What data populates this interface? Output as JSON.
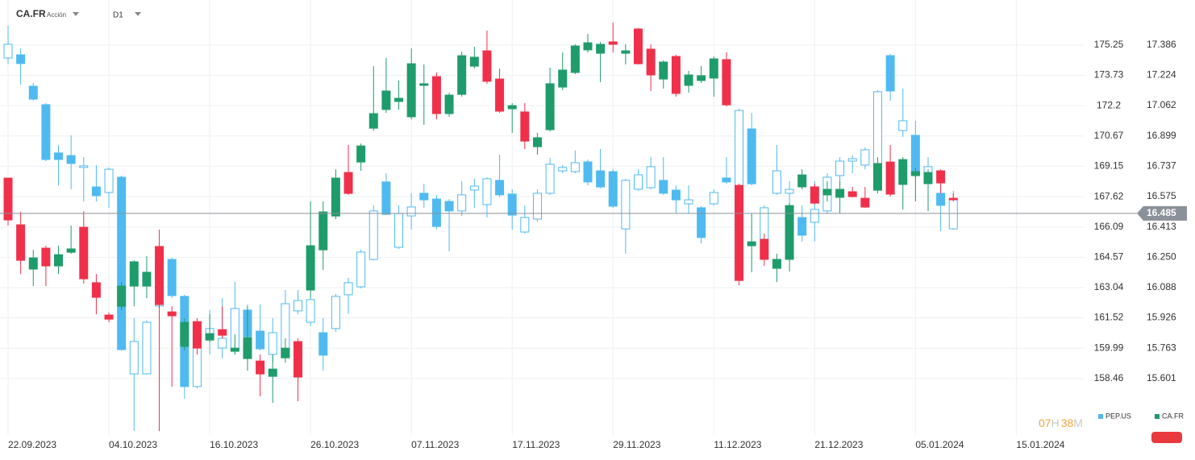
{
  "header": {
    "symbol": "CA.FR",
    "asset_type": "Acción",
    "timeframe": "D1"
  },
  "countdown": {
    "hours": "07",
    "hours_unit": "H",
    "minutes": "38",
    "minutes_unit": "M"
  },
  "chart_data": {
    "type": "candlestick",
    "categories": [
      "22.09.2023",
      null,
      null,
      null,
      null,
      null,
      null,
      null,
      "04.10.2023",
      null,
      null,
      null,
      null,
      null,
      null,
      null,
      "16.10.2023",
      null,
      null,
      null,
      null,
      null,
      null,
      null,
      "26.10.2023",
      null,
      null,
      null,
      null,
      null,
      null,
      null,
      "07.11.2023",
      null,
      null,
      null,
      null,
      null,
      null,
      null,
      "17.11.2023",
      null,
      null,
      null,
      null,
      null,
      null,
      null,
      "29.11.2023",
      null,
      null,
      null,
      null,
      null,
      null,
      null,
      "11.12.2023",
      null,
      null,
      null,
      null,
      null,
      null,
      null,
      "21.12.2023",
      null,
      null,
      null,
      null,
      null,
      null,
      null,
      "05.01.2024",
      null,
      null,
      null,
      null,
      null,
      null,
      null,
      "15.01.2024"
    ],
    "series": [
      {
        "name": "PEP.US",
        "axis": "y",
        "color": "#4fbaf0",
        "hollow_up": true,
        "open": [
          174.6,
          174.76,
          173.18,
          172.25,
          169.82,
          169.69,
          169.09,
          168.11,
          167.83,
          168.6,
          158.7,
          158.7,
          162.11,
          164.46,
          162.6,
          158.06,
          160.49,
          160.0,
          159.88,
          161.91,
          160.85,
          159.68,
          159.52,
          161.87,
          161.3,
          160.77,
          160.98,
          162.68,
          163.08,
          164.46,
          168.36,
          165.07,
          166.65,
          167.79,
          167.5,
          167.38,
          166.9,
          167.95,
          167.22,
          168.44,
          167.75,
          165.84,
          166.49,
          167.79,
          168.92,
          168.88,
          169.37,
          168.92,
          168.88,
          166.0,
          167.99,
          168.07,
          168.44,
          167.95,
          167.26,
          167.06,
          167.26,
          168.56,
          166.77,
          171.03,
          165.48,
          167.79,
          167.79,
          166.57,
          166.33,
          166.9,
          168.68,
          169.41,
          169.21,
          169.25,
          174.72,
          170.95,
          170.71,
          168.64,
          167.79,
          166.0,
          null,
          null,
          null,
          null,
          null
        ],
        "high": [
          176.22,
          175.09,
          173.34,
          172.33,
          170.22,
          170.71,
          169.61,
          169.21,
          169.09,
          168.68,
          161.5,
          161.38,
          164.54,
          164.54,
          162.68,
          161.3,
          161.91,
          162.52,
          163.33,
          162.19,
          162.19,
          161.5,
          162.92,
          162.92,
          162.52,
          161.5,
          162.72,
          163.53,
          164.95,
          167.18,
          168.8,
          167.18,
          167.79,
          168.27,
          167.71,
          167.5,
          168.4,
          168.52,
          168.6,
          169.73,
          167.99,
          167.18,
          167.99,
          169.57,
          169.21,
          169.94,
          169.49,
          170.02,
          169.0,
          168.52,
          169.0,
          169.61,
          169.61,
          168.19,
          168.19,
          167.14,
          167.99,
          169.61,
          172.05,
          171.84,
          167.18,
          170.22,
          168.4,
          167.18,
          168.4,
          168.8,
          169.61,
          169.69,
          170.1,
          172.98,
          174.8,
          173.06,
          171.44,
          169.61,
          168.4,
          167.91,
          null,
          null,
          null,
          null,
          null
        ],
        "low": [
          174.28,
          173.26,
          172.45,
          169.41,
          168.19,
          167.99,
          167.38,
          167.38,
          167.06,
          159.88,
          155.83,
          158.66,
          162.03,
          162.52,
          157.45,
          157.98,
          159.68,
          159.48,
          159.68,
          160.49,
          159.88,
          159.27,
          159.48,
          161.71,
          161.1,
          158.87,
          160.81,
          161.71,
          163.0,
          164.42,
          166.69,
          164.99,
          165.96,
          167.06,
          165.96,
          164.87,
          166.65,
          167.06,
          166.57,
          167.59,
          165.96,
          165.76,
          166.37,
          167.71,
          168.8,
          168.8,
          168.19,
          168.03,
          167.06,
          164.75,
          167.91,
          167.99,
          167.71,
          166.77,
          166.77,
          165.27,
          167.18,
          168.27,
          166.65,
          168.19,
          165.36,
          167.71,
          167.18,
          165.36,
          165.36,
          166.77,
          168.19,
          168.8,
          169.0,
          168.8,
          172.45,
          170.63,
          168.52,
          168.4,
          165.88,
          165.96,
          null,
          null,
          null,
          null,
          null
        ],
        "close": [
          175.29,
          174.32,
          172.53,
          169.49,
          169.49,
          169.29,
          169.17,
          167.67,
          169.0,
          159.92,
          160.33,
          161.3,
          164.38,
          162.64,
          158.06,
          160.49,
          160.98,
          160.49,
          161.99,
          160.57,
          159.96,
          160.77,
          162.23,
          162.39,
          162.44,
          159.64,
          162.6,
          163.29,
          164.83,
          166.9,
          166.73,
          166.77,
          167.1,
          167.46,
          166.12,
          166.9,
          167.71,
          168.15,
          168.52,
          167.71,
          166.69,
          166.57,
          167.79,
          169.25,
          169.09,
          169.33,
          168.36,
          168.11,
          167.14,
          168.44,
          168.72,
          169.13,
          167.79,
          167.46,
          167.46,
          165.56,
          167.83,
          168.36,
          171.96,
          168.27,
          167.06,
          168.92,
          167.99,
          165.68,
          166.98,
          168.6,
          169.41,
          169.53,
          169.98,
          172.9,
          172.94,
          171.44,
          168.72,
          169.13,
          167.18,
          167.46,
          null,
          null,
          null,
          null,
          null
        ]
      },
      {
        "name": "CA.FR",
        "axis": "y2",
        "color": "#1e9c6b",
        "down_color": "#f0304a",
        "hollow_up": false,
        "open": [
          16.674,
          16.424,
          16.187,
          16.299,
          16.204,
          16.277,
          16.411,
          16.114,
          15.941,
          15.988,
          16.096,
          16.096,
          16.308,
          15.958,
          15.773,
          15.906,
          15.807,
          15.863,
          15.747,
          15.708,
          15.695,
          15.613,
          15.712,
          15.799,
          16.075,
          16.29,
          16.471,
          16.704,
          16.76,
          16.941,
          17.041,
          17.084,
          17.002,
          17.17,
          17.217,
          17.019,
          17.122,
          17.273,
          17.355,
          17.204,
          17.045,
          17.028,
          16.842,
          16.933,
          17.161,
          17.239,
          17.36,
          17.342,
          17.403,
          17.342,
          17.472,
          17.364,
          17.204,
          17.325,
          17.17,
          17.196,
          17.209,
          17.308,
          16.635,
          16.312,
          16.346,
          16.191,
          16.239,
          16.627,
          16.627,
          16.584,
          16.571,
          16.601,
          16.566,
          16.609,
          16.76,
          16.64,
          16.687,
          16.644,
          16.713,
          16.566,
          null,
          null,
          null,
          null,
          null
        ],
        "high": [
          16.674,
          16.493,
          16.29,
          16.312,
          16.312,
          16.42,
          16.497,
          16.161,
          15.954,
          16.118,
          16.234,
          16.256,
          16.398,
          15.988,
          15.924,
          15.924,
          15.945,
          15.988,
          15.838,
          15.988,
          15.73,
          15.73,
          15.816,
          15.816,
          16.549,
          16.549,
          16.721,
          16.851,
          16.859,
          17.273,
          17.317,
          17.196,
          17.368,
          17.282,
          17.239,
          17.131,
          17.351,
          17.377,
          17.463,
          17.26,
          17.075,
          17.075,
          16.916,
          17.265,
          17.347,
          17.39,
          17.446,
          17.403,
          17.506,
          17.39,
          17.476,
          17.39,
          17.304,
          17.334,
          17.248,
          17.273,
          17.325,
          17.347,
          16.644,
          16.484,
          16.376,
          16.269,
          16.54,
          16.721,
          16.644,
          16.657,
          16.657,
          16.627,
          16.627,
          16.786,
          16.851,
          16.786,
          16.73,
          16.721,
          16.721,
          16.592,
          null,
          null,
          null,
          null,
          null
        ],
        "low": [
          16.42,
          16.161,
          16.096,
          16.096,
          16.161,
          16.269,
          16.109,
          15.945,
          15.902,
          15.967,
          15.988,
          16.032,
          15.32,
          15.557,
          15.751,
          15.73,
          15.794,
          15.816,
          15.73,
          15.643,
          15.506,
          15.471,
          15.687,
          15.48,
          16.032,
          16.182,
          16.454,
          16.584,
          16.713,
          16.928,
          17.023,
          17.041,
          16.989,
          16.959,
          16.989,
          17.002,
          17.11,
          17.26,
          17.179,
          17.023,
          16.916,
          16.829,
          16.799,
          16.924,
          17.144,
          17.23,
          17.347,
          17.187,
          17.347,
          17.282,
          17.282,
          17.14,
          17.153,
          17.11,
          17.131,
          17.183,
          17.11,
          17.058,
          16.101,
          16.17,
          16.204,
          16.118,
          16.174,
          16.614,
          16.532,
          16.549,
          16.484,
          16.571,
          16.514,
          16.592,
          16.575,
          16.506,
          16.549,
          16.497,
          16.592,
          16.549,
          null,
          null,
          null,
          null,
          null
        ],
        "close": [
          16.45,
          16.234,
          16.247,
          16.204,
          16.264,
          16.295,
          16.135,
          16.036,
          15.919,
          16.096,
          16.226,
          16.17,
          15.997,
          15.937,
          15.902,
          15.764,
          15.842,
          15.833,
          15.764,
          15.82,
          15.626,
          15.652,
          15.764,
          15.609,
          16.312,
          16.493,
          16.674,
          16.592,
          16.846,
          17.019,
          17.14,
          17.101,
          17.286,
          17.179,
          17.019,
          17.118,
          17.329,
          17.321,
          17.192,
          17.032,
          17.062,
          16.872,
          16.89,
          17.179,
          17.252,
          17.381,
          17.398,
          17.39,
          17.39,
          17.355,
          17.286,
          17.226,
          17.295,
          17.127,
          17.226,
          17.222,
          17.312,
          17.066,
          16.126,
          16.333,
          16.239,
          16.239,
          16.527,
          16.691,
          16.54,
          16.614,
          16.614,
          16.575,
          16.519,
          16.752,
          16.588,
          16.773,
          16.709,
          16.704,
          16.648,
          16.558,
          null,
          null,
          null,
          null,
          null
        ]
      }
    ],
    "ylim": [
      155.62,
      177.52
    ],
    "yticks": [
      175.25,
      173.73,
      172.2,
      170.67,
      169.15,
      167.62,
      166.09,
      164.57,
      163.04,
      161.52,
      159.99,
      158.46
    ],
    "y2lim": [
      15.299,
      17.627
    ],
    "y2ticks": [
      17.386,
      17.224,
      17.062,
      16.899,
      16.737,
      16.575,
      16.413,
      {
        "value": 16.25,
        "label": "16.250"
      },
      16.088,
      15.926,
      15.763,
      15.601
    ],
    "grid": true,
    "last_price": 16.485,
    "last_price_color": "#8a9199"
  }
}
